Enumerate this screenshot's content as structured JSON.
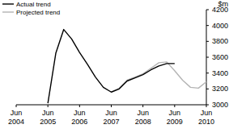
{
  "chart_data": {
    "type": "line",
    "y_label": "$m",
    "categories": [
      "Jun 2004",
      null,
      null,
      null,
      "Jun 2005",
      null,
      null,
      null,
      "Jun 2006",
      null,
      null,
      null,
      "Jun 2007",
      null,
      null,
      null,
      "Jun 2008",
      null,
      null,
      null,
      "Jun 2009",
      null,
      null,
      null,
      "Jun 2010"
    ],
    "series": [
      {
        "name": "Projected trend",
        "color": "#b4b4b4",
        "values": [
          null,
          null,
          null,
          null,
          null,
          null,
          null,
          null,
          null,
          null,
          null,
          null,
          3160,
          3210,
          3310,
          3350,
          3390,
          3460,
          3530,
          3540,
          3430,
          3310,
          3220,
          3210,
          3290
        ]
      },
      {
        "name": "Actual trend",
        "color": "#000000",
        "values": [
          null,
          null,
          null,
          null,
          3020,
          3650,
          3950,
          3830,
          3660,
          3510,
          3350,
          3220,
          3160,
          3200,
          3300,
          3340,
          3380,
          3440,
          3490,
          3520,
          3520,
          null,
          null,
          null,
          null
        ]
      }
    ],
    "ylim": [
      3000,
      4200
    ],
    "yticks": [
      3000,
      3200,
      3400,
      3600,
      3800,
      4000,
      4200
    ],
    "legend": "top-left",
    "grid": false
  }
}
